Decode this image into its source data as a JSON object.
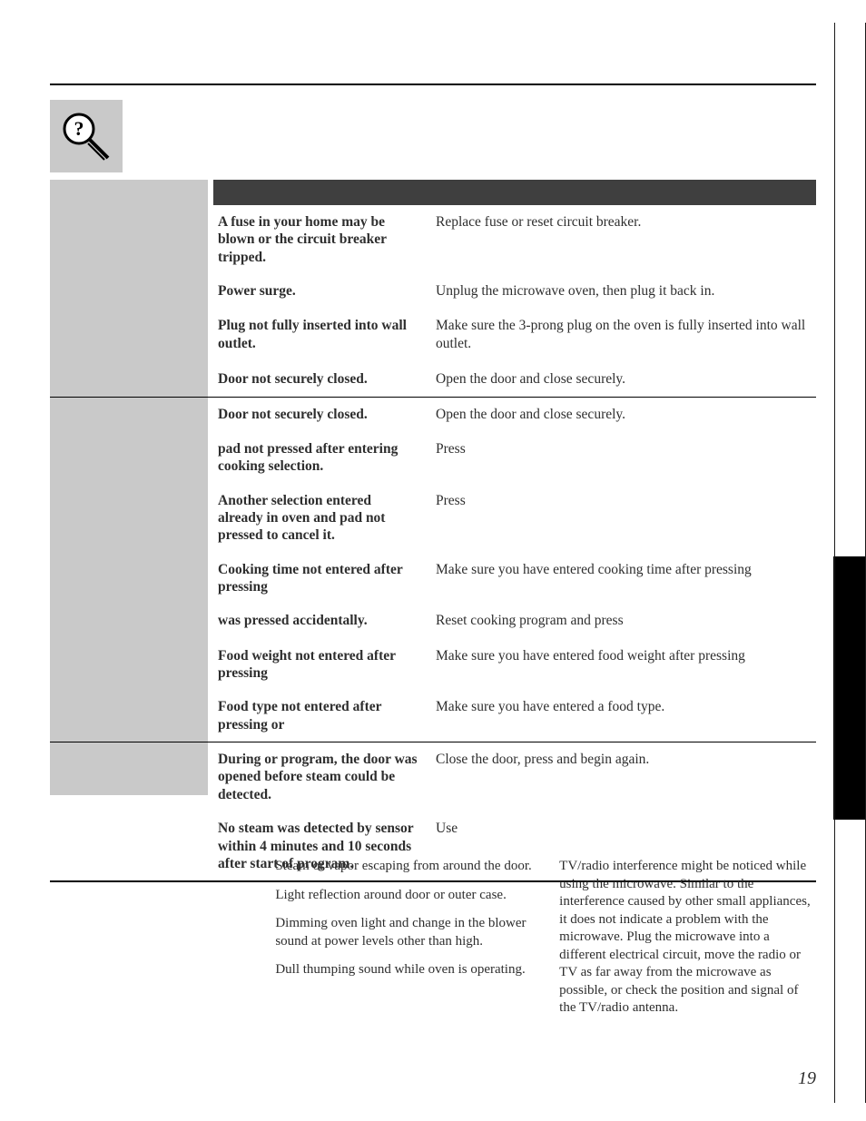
{
  "page_number": "19",
  "icon": "question-magnifier-icon",
  "table": {
    "groups": [
      {
        "rows": [
          {
            "cause_html": [
              [
                "b",
                "A fuse in your home may be blown or the circuit breaker tripped."
              ]
            ],
            "fix_html": [
              [
                "",
                "Replace fuse or reset circuit breaker."
              ]
            ]
          },
          {
            "cause_html": [
              [
                "b",
                "Power surge."
              ]
            ],
            "fix_html": [
              [
                "",
                "Unplug the microwave oven, then plug it back in."
              ]
            ]
          },
          {
            "cause_html": [
              [
                "b",
                "Plug not fully inserted into wall outlet."
              ]
            ],
            "fix_html": [
              [
                "",
                "Make sure the 3-prong plug on the oven is fully inserted into wall outlet."
              ]
            ]
          },
          {
            "cause_html": [
              [
                "b",
                "Door not securely closed."
              ]
            ],
            "fix_html": [
              [
                "",
                "Open the door and close securely."
              ]
            ]
          }
        ]
      },
      {
        "rows": [
          {
            "cause_html": [
              [
                "b",
                "Door not securely closed."
              ]
            ],
            "fix_html": [
              [
                "",
                "Open the door and close securely."
              ]
            ]
          },
          {
            "cause_html": [
              [
                "b",
                "          pad not pressed after entering cooking selection."
              ]
            ],
            "fix_html": [
              [
                "",
                "Press"
              ]
            ]
          },
          {
            "cause_html": [
              [
                "b",
                "Another selection entered already in oven and           pad not pressed to cancel it."
              ]
            ],
            "fix_html": [
              [
                "",
                "Press"
              ]
            ]
          },
          {
            "cause_html": [
              [
                "b",
                "Cooking time not entered after pressing"
              ]
            ],
            "fix_html": [
              [
                "",
                "Make sure you have entered cooking time after pressing"
              ]
            ]
          },
          {
            "cause_html": [
              [
                "b",
                "               was pressed accidentally."
              ]
            ],
            "fix_html": [
              [
                "",
                "Reset cooking program and press"
              ]
            ]
          },
          {
            "cause_html": [
              [
                "b",
                "Food weight not entered after pressing"
              ]
            ],
            "fix_html": [
              [
                "",
                "Make sure you have entered food weight after pressing"
              ]
            ]
          },
          {
            "cause_html": [
              [
                "b",
                "Food type not entered after pressing               or"
              ]
            ],
            "fix_html": [
              [
                "",
                "Make sure you have entered a food type."
              ]
            ]
          }
        ]
      },
      {
        "rows": [
          {
            "cause_html": [
              [
                "b",
                "During               or               program, the door was opened before steam could be detected."
              ]
            ],
            "fix_html": [
              [
                "",
                "Close the door, press               and begin again."
              ]
            ]
          },
          {
            "cause_html": [
              [
                "b",
                "No steam was detected by sensor within 4 minutes and 10 seconds after start of               program."
              ]
            ],
            "fix_html": [
              [
                "",
                "Use"
              ]
            ]
          }
        ]
      }
    ]
  },
  "notes": {
    "col1": [
      "Steam or vapor escaping from around the door.",
      "Light reflection around door or outer case.",
      "Dimming oven light and change in the blower sound at power levels other than high.",
      "Dull thumping sound while oven is operating."
    ],
    "col2": [
      "TV/radio interference might be noticed while using the microwave.  Similar to the interference caused by other small appliances, it does not indicate a problem with the microwave. Plug the microwave into a different electrical circuit, move the radio or TV as far away from the microwave as possible, or check the position and signal of the TV/radio antenna."
    ]
  }
}
